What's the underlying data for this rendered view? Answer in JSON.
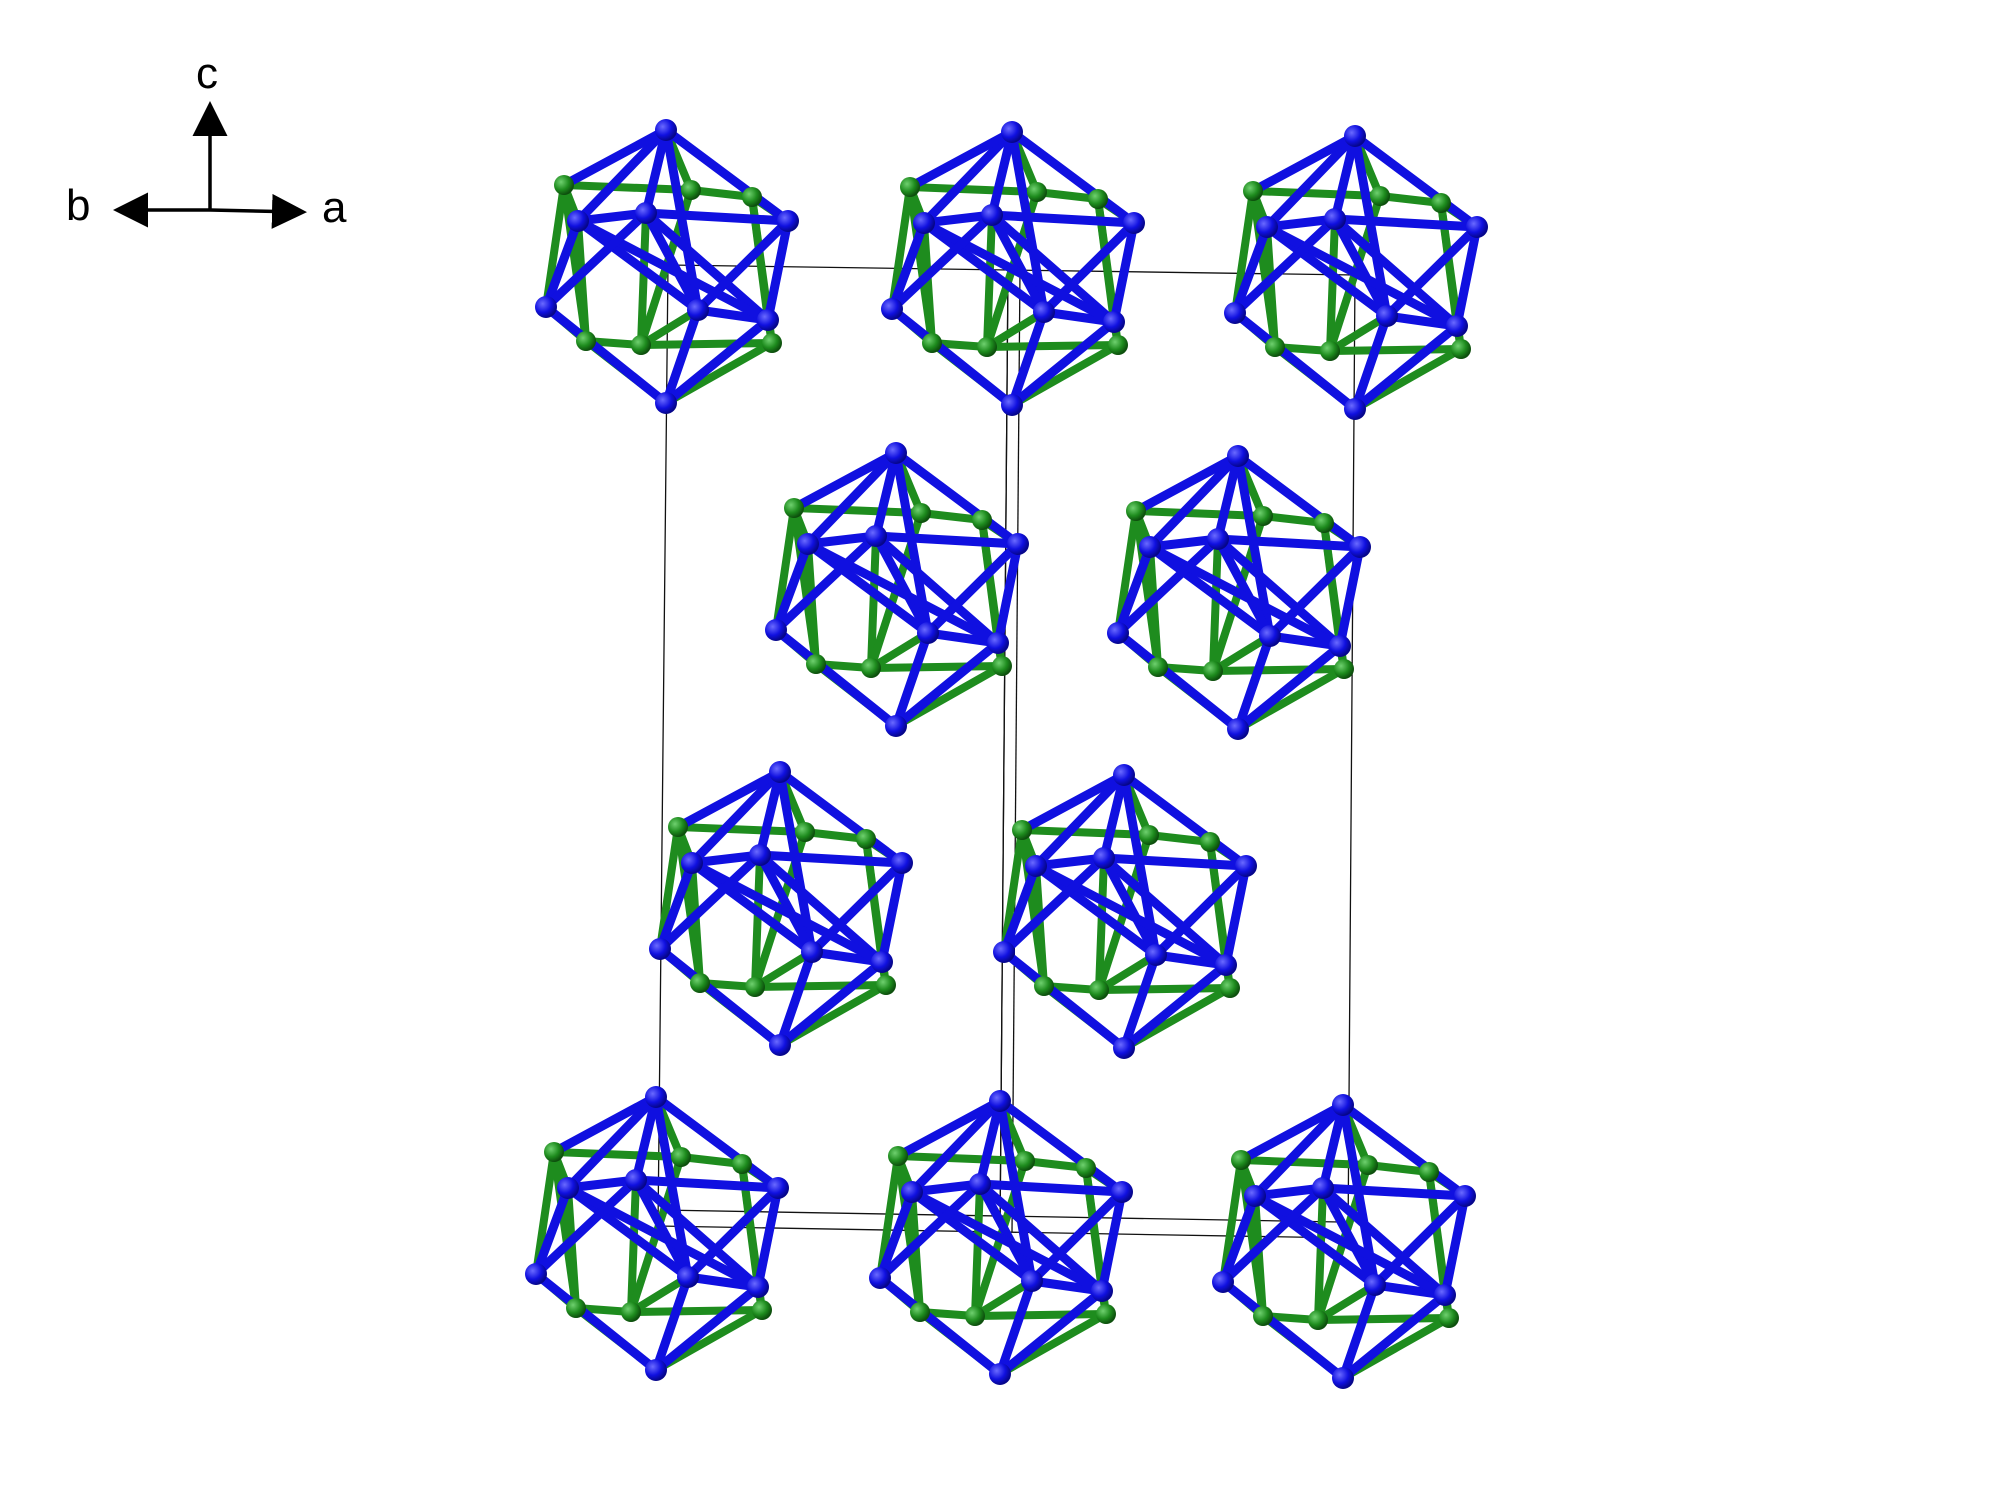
{
  "axes": {
    "labels": {
      "c": "c",
      "b": "b",
      "a": "a"
    },
    "color": "#000000"
  },
  "colors": {
    "atom_blue": "#1010e0",
    "atom_green": "#1e8c1e",
    "cell_edge": "#111111",
    "background": "#ffffff"
  },
  "structure": {
    "cluster_shape": "icosahedron",
    "cluster_count": 10,
    "atoms_per_cluster": 12,
    "atom_types": [
      "blue",
      "green"
    ]
  }
}
